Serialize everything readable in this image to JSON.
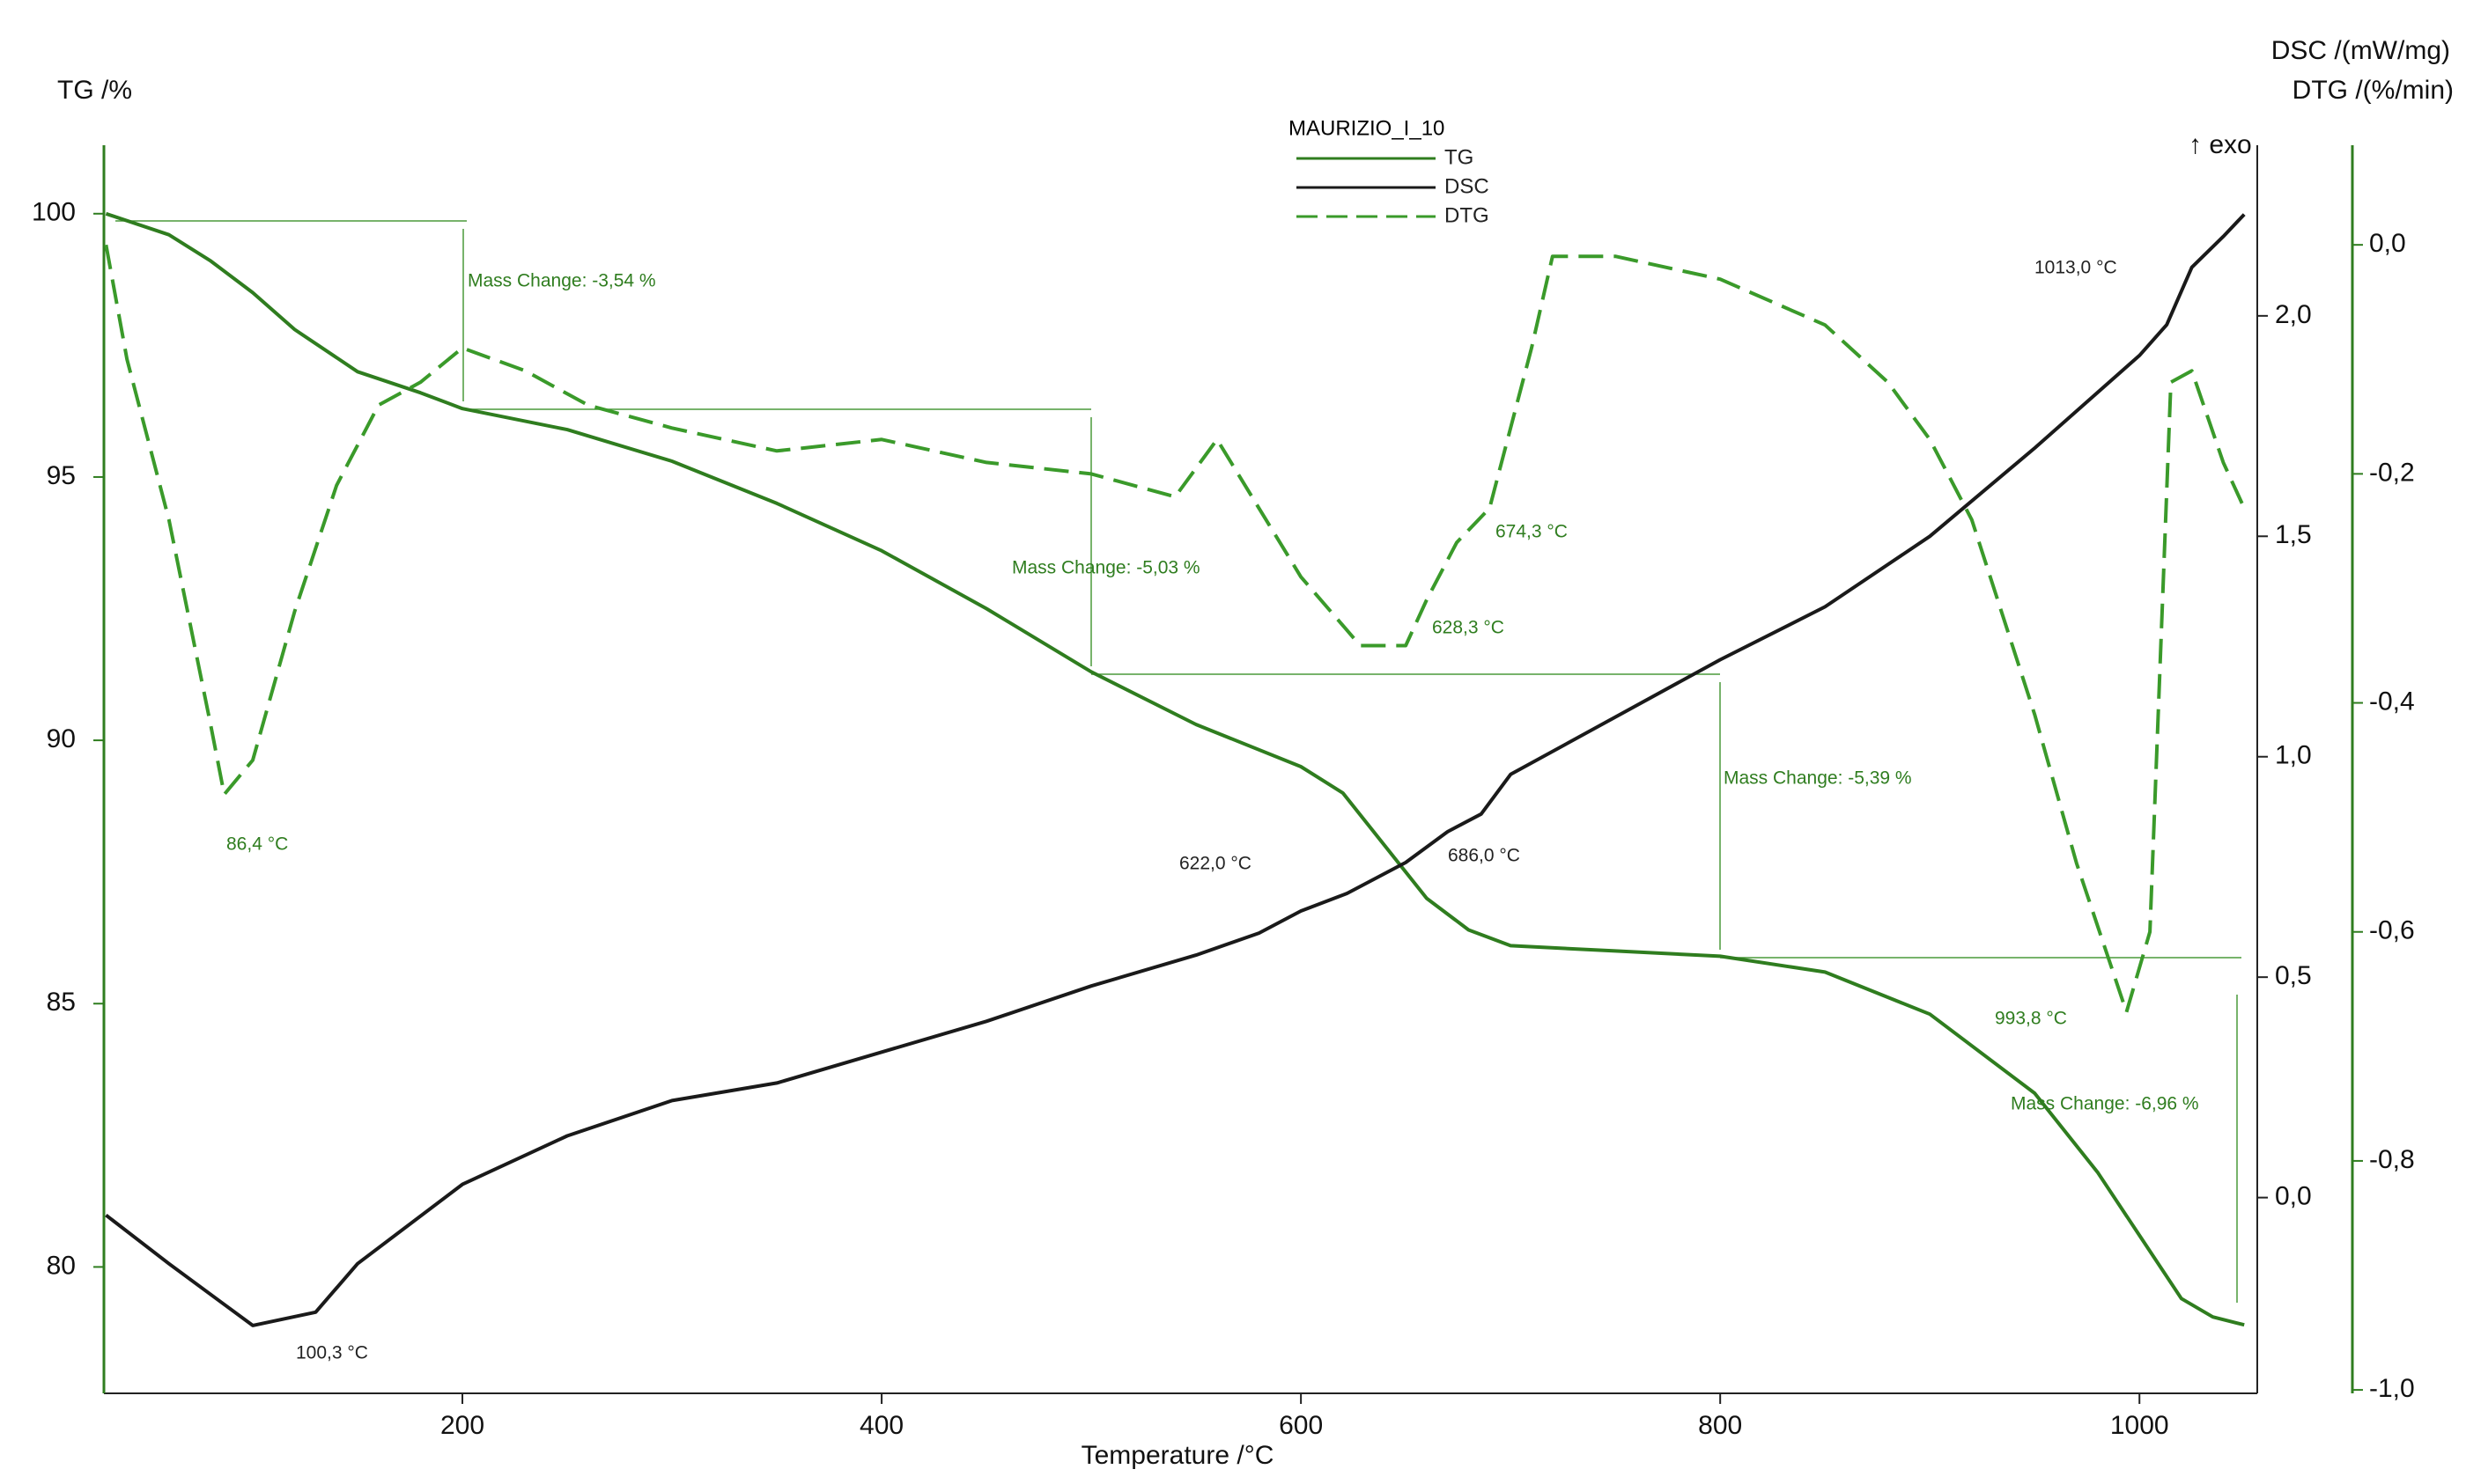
{
  "chart_data": {
    "type": "line",
    "title": "MAURIZIO_I_10",
    "x_label": "Temperature /°C",
    "y_label": "TG /%",
    "y2_label": "DSC /(mW/mg)",
    "y3_label": "DTG /(%/min)",
    "exo_label": "↑ exo",
    "xlim": [
      29,
      1052
    ],
    "xticks": [
      200,
      400,
      600,
      800,
      1000
    ],
    "ylim": [
      77.6,
      101.3
    ],
    "yticks": [
      80,
      85,
      90,
      95,
      100
    ],
    "y2lim": [
      -0.444,
      2.387
    ],
    "y2ticks": [
      {
        "value": 0,
        "label": "0,0"
      },
      {
        "value": 0.5,
        "label": "0,5"
      },
      {
        "value": 1,
        "label": "1,0"
      },
      {
        "value": 1.5,
        "label": "1,5"
      },
      {
        "value": 2,
        "label": "2,0"
      }
    ],
    "y3lim": [
      -1.003,
      0.087
    ],
    "y3ticks": [
      {
        "value": -1,
        "label": "-1,0"
      },
      {
        "value": -0.8,
        "label": "-0,8"
      },
      {
        "value": -0.6,
        "label": "-0,6"
      },
      {
        "value": -0.4,
        "label": "-0,4"
      },
      {
        "value": -0.2,
        "label": "-0,2"
      },
      {
        "value": 0,
        "label": "0,0"
      }
    ],
    "series": [
      {
        "name": "TG",
        "color": "#2f7d1f",
        "axis": "y",
        "line_style": "solid",
        "x": [
          30,
          60,
          80,
          100,
          120,
          150,
          180,
          200,
          250,
          300,
          350,
          400,
          450,
          500,
          550,
          600,
          620,
          640,
          660,
          680,
          700,
          750,
          800,
          850,
          900,
          950,
          980,
          1000,
          1020,
          1035,
          1050
        ],
        "values": [
          100.0,
          99.6,
          99.1,
          98.5,
          97.8,
          97.0,
          96.6,
          96.3,
          95.9,
          95.3,
          94.5,
          93.6,
          92.5,
          91.3,
          90.3,
          89.5,
          89.0,
          88.0,
          87.0,
          86.4,
          86.1,
          86.0,
          85.9,
          85.6,
          84.8,
          83.3,
          81.8,
          80.6,
          79.4,
          79.05,
          78.9
        ]
      },
      {
        "name": "DSC",
        "color": "#1a1a1a",
        "axis": "y2",
        "line_style": "solid",
        "x": [
          30,
          60,
          100,
          130,
          150,
          200,
          250,
          300,
          350,
          400,
          450,
          500,
          550,
          580,
          600,
          622,
          650,
          670,
          686,
          700,
          750,
          800,
          850,
          900,
          950,
          1000,
          1013,
          1025,
          1040,
          1050
        ],
        "values": [
          -0.04,
          -0.15,
          -0.29,
          -0.26,
          -0.15,
          0.03,
          0.14,
          0.22,
          0.26,
          0.33,
          0.4,
          0.48,
          0.55,
          0.6,
          0.65,
          0.69,
          0.76,
          0.83,
          0.87,
          0.96,
          1.09,
          1.22,
          1.34,
          1.5,
          1.7,
          1.91,
          1.98,
          2.11,
          2.18,
          2.23
        ]
      },
      {
        "name": "DTG",
        "color": "#3a9a2a",
        "axis": "y3",
        "line_style": "dashed",
        "x": [
          30,
          40,
          60,
          80,
          86.4,
          100,
          120,
          140,
          160,
          180,
          200,
          230,
          260,
          300,
          350,
          400,
          450,
          500,
          540,
          560,
          580,
          600,
          628.3,
          650,
          660,
          674.3,
          690,
          710,
          720,
          750,
          800,
          850,
          880,
          900,
          920,
          950,
          970,
          993.8,
          1005,
          1015,
          1025,
          1040,
          1050
        ],
        "values": [
          0.0,
          -0.1,
          -0.24,
          -0.42,
          -0.48,
          -0.45,
          -0.32,
          -0.21,
          -0.14,
          -0.12,
          -0.09,
          -0.11,
          -0.14,
          -0.16,
          -0.18,
          -0.17,
          -0.19,
          -0.2,
          -0.22,
          -0.17,
          -0.23,
          -0.29,
          -0.35,
          -0.35,
          -0.31,
          -0.26,
          -0.23,
          -0.09,
          -0.01,
          -0.01,
          -0.03,
          -0.07,
          -0.12,
          -0.17,
          -0.24,
          -0.41,
          -0.54,
          -0.67,
          -0.6,
          -0.12,
          -0.11,
          -0.19,
          -0.23
        ]
      }
    ],
    "annotations": [
      "Mass Change: -3,54 %",
      "Mass Change: -5,03 %",
      "Mass Change: -5,39 %",
      "Mass Change: -6,96 %",
      "86,4 °C",
      "628,3 °C",
      "674,3 °C",
      "993,8 °C",
      "100,3 °C",
      "622,0 °C",
      "686,0 °C",
      "1013,0 °C"
    ]
  }
}
